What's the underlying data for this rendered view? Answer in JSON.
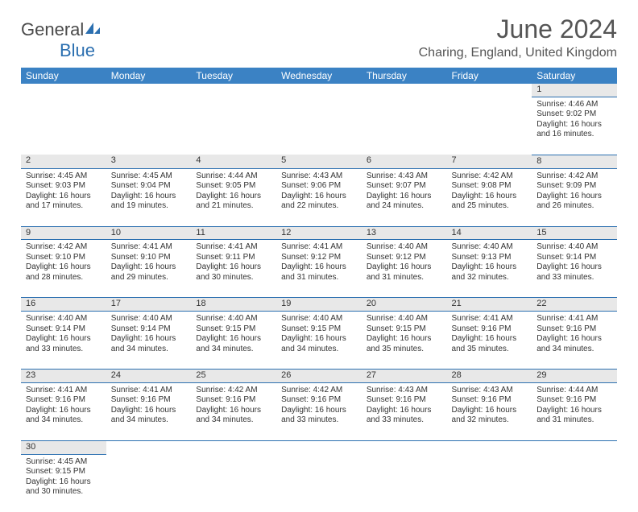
{
  "brand": {
    "general": "General",
    "blue": "Blue"
  },
  "title": "June 2024",
  "location": "Charing, England, United Kingdom",
  "colors": {
    "header_bg": "#3b82c4",
    "header_text": "#ffffff",
    "daynum_bg": "#e8e8e8",
    "border": "#2b6fb0",
    "title_color": "#555555"
  },
  "day_headers": [
    "Sunday",
    "Monday",
    "Tuesday",
    "Wednesday",
    "Thursday",
    "Friday",
    "Saturday"
  ],
  "weeks": [
    {
      "nums": [
        "",
        "",
        "",
        "",
        "",
        "",
        "1"
      ],
      "cells": [
        null,
        null,
        null,
        null,
        null,
        null,
        {
          "sunrise": "Sunrise: 4:46 AM",
          "sunset": "Sunset: 9:02 PM",
          "dl1": "Daylight: 16 hours",
          "dl2": "and 16 minutes."
        }
      ]
    },
    {
      "nums": [
        "2",
        "3",
        "4",
        "5",
        "6",
        "7",
        "8"
      ],
      "cells": [
        {
          "sunrise": "Sunrise: 4:45 AM",
          "sunset": "Sunset: 9:03 PM",
          "dl1": "Daylight: 16 hours",
          "dl2": "and 17 minutes."
        },
        {
          "sunrise": "Sunrise: 4:45 AM",
          "sunset": "Sunset: 9:04 PM",
          "dl1": "Daylight: 16 hours",
          "dl2": "and 19 minutes."
        },
        {
          "sunrise": "Sunrise: 4:44 AM",
          "sunset": "Sunset: 9:05 PM",
          "dl1": "Daylight: 16 hours",
          "dl2": "and 21 minutes."
        },
        {
          "sunrise": "Sunrise: 4:43 AM",
          "sunset": "Sunset: 9:06 PM",
          "dl1": "Daylight: 16 hours",
          "dl2": "and 22 minutes."
        },
        {
          "sunrise": "Sunrise: 4:43 AM",
          "sunset": "Sunset: 9:07 PM",
          "dl1": "Daylight: 16 hours",
          "dl2": "and 24 minutes."
        },
        {
          "sunrise": "Sunrise: 4:42 AM",
          "sunset": "Sunset: 9:08 PM",
          "dl1": "Daylight: 16 hours",
          "dl2": "and 25 minutes."
        },
        {
          "sunrise": "Sunrise: 4:42 AM",
          "sunset": "Sunset: 9:09 PM",
          "dl1": "Daylight: 16 hours",
          "dl2": "and 26 minutes."
        }
      ]
    },
    {
      "nums": [
        "9",
        "10",
        "11",
        "12",
        "13",
        "14",
        "15"
      ],
      "cells": [
        {
          "sunrise": "Sunrise: 4:42 AM",
          "sunset": "Sunset: 9:10 PM",
          "dl1": "Daylight: 16 hours",
          "dl2": "and 28 minutes."
        },
        {
          "sunrise": "Sunrise: 4:41 AM",
          "sunset": "Sunset: 9:10 PM",
          "dl1": "Daylight: 16 hours",
          "dl2": "and 29 minutes."
        },
        {
          "sunrise": "Sunrise: 4:41 AM",
          "sunset": "Sunset: 9:11 PM",
          "dl1": "Daylight: 16 hours",
          "dl2": "and 30 minutes."
        },
        {
          "sunrise": "Sunrise: 4:41 AM",
          "sunset": "Sunset: 9:12 PM",
          "dl1": "Daylight: 16 hours",
          "dl2": "and 31 minutes."
        },
        {
          "sunrise": "Sunrise: 4:40 AM",
          "sunset": "Sunset: 9:12 PM",
          "dl1": "Daylight: 16 hours",
          "dl2": "and 31 minutes."
        },
        {
          "sunrise": "Sunrise: 4:40 AM",
          "sunset": "Sunset: 9:13 PM",
          "dl1": "Daylight: 16 hours",
          "dl2": "and 32 minutes."
        },
        {
          "sunrise": "Sunrise: 4:40 AM",
          "sunset": "Sunset: 9:14 PM",
          "dl1": "Daylight: 16 hours",
          "dl2": "and 33 minutes."
        }
      ]
    },
    {
      "nums": [
        "16",
        "17",
        "18",
        "19",
        "20",
        "21",
        "22"
      ],
      "cells": [
        {
          "sunrise": "Sunrise: 4:40 AM",
          "sunset": "Sunset: 9:14 PM",
          "dl1": "Daylight: 16 hours",
          "dl2": "and 33 minutes."
        },
        {
          "sunrise": "Sunrise: 4:40 AM",
          "sunset": "Sunset: 9:14 PM",
          "dl1": "Daylight: 16 hours",
          "dl2": "and 34 minutes."
        },
        {
          "sunrise": "Sunrise: 4:40 AM",
          "sunset": "Sunset: 9:15 PM",
          "dl1": "Daylight: 16 hours",
          "dl2": "and 34 minutes."
        },
        {
          "sunrise": "Sunrise: 4:40 AM",
          "sunset": "Sunset: 9:15 PM",
          "dl1": "Daylight: 16 hours",
          "dl2": "and 34 minutes."
        },
        {
          "sunrise": "Sunrise: 4:40 AM",
          "sunset": "Sunset: 9:15 PM",
          "dl1": "Daylight: 16 hours",
          "dl2": "and 35 minutes."
        },
        {
          "sunrise": "Sunrise: 4:41 AM",
          "sunset": "Sunset: 9:16 PM",
          "dl1": "Daylight: 16 hours",
          "dl2": "and 35 minutes."
        },
        {
          "sunrise": "Sunrise: 4:41 AM",
          "sunset": "Sunset: 9:16 PM",
          "dl1": "Daylight: 16 hours",
          "dl2": "and 34 minutes."
        }
      ]
    },
    {
      "nums": [
        "23",
        "24",
        "25",
        "26",
        "27",
        "28",
        "29"
      ],
      "cells": [
        {
          "sunrise": "Sunrise: 4:41 AM",
          "sunset": "Sunset: 9:16 PM",
          "dl1": "Daylight: 16 hours",
          "dl2": "and 34 minutes."
        },
        {
          "sunrise": "Sunrise: 4:41 AM",
          "sunset": "Sunset: 9:16 PM",
          "dl1": "Daylight: 16 hours",
          "dl2": "and 34 minutes."
        },
        {
          "sunrise": "Sunrise: 4:42 AM",
          "sunset": "Sunset: 9:16 PM",
          "dl1": "Daylight: 16 hours",
          "dl2": "and 34 minutes."
        },
        {
          "sunrise": "Sunrise: 4:42 AM",
          "sunset": "Sunset: 9:16 PM",
          "dl1": "Daylight: 16 hours",
          "dl2": "and 33 minutes."
        },
        {
          "sunrise": "Sunrise: 4:43 AM",
          "sunset": "Sunset: 9:16 PM",
          "dl1": "Daylight: 16 hours",
          "dl2": "and 33 minutes."
        },
        {
          "sunrise": "Sunrise: 4:43 AM",
          "sunset": "Sunset: 9:16 PM",
          "dl1": "Daylight: 16 hours",
          "dl2": "and 32 minutes."
        },
        {
          "sunrise": "Sunrise: 4:44 AM",
          "sunset": "Sunset: 9:16 PM",
          "dl1": "Daylight: 16 hours",
          "dl2": "and 31 minutes."
        }
      ]
    },
    {
      "nums": [
        "30",
        "",
        "",
        "",
        "",
        "",
        ""
      ],
      "cells": [
        {
          "sunrise": "Sunrise: 4:45 AM",
          "sunset": "Sunset: 9:15 PM",
          "dl1": "Daylight: 16 hours",
          "dl2": "and 30 minutes."
        },
        null,
        null,
        null,
        null,
        null,
        null
      ]
    }
  ]
}
